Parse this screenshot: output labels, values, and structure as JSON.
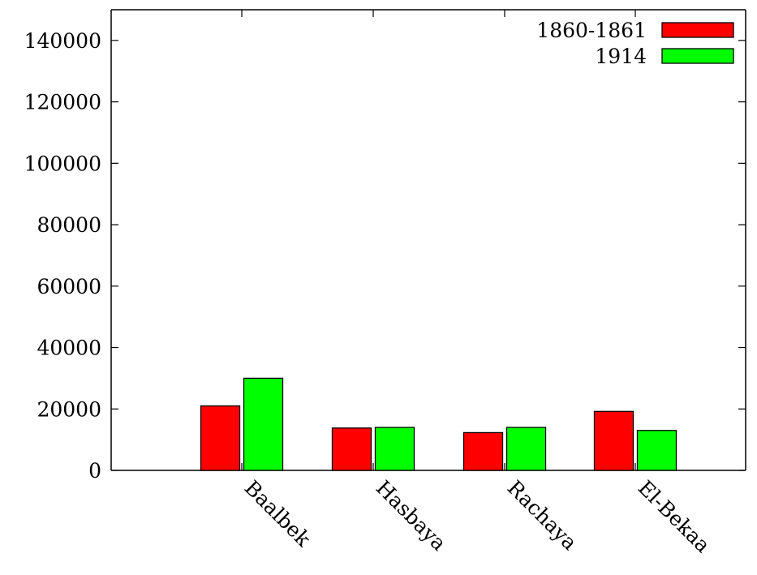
{
  "chart_data": {
    "type": "bar",
    "title": "",
    "xlabel": "",
    "ylabel": "",
    "categories": [
      "Baalbek",
      "Hasbaya",
      "Rachaya",
      "El-Bekaa"
    ],
    "series": [
      {
        "name": "1860-1861",
        "color": "#ff0000",
        "values": [
          21000,
          13800,
          12300,
          19200
        ]
      },
      {
        "name": "1914",
        "color": "#00ff00",
        "values": [
          30000,
          14000,
          14000,
          13000
        ]
      }
    ],
    "ylim": [
      0,
      150000
    ],
    "yticks": [
      0,
      20000,
      40000,
      60000,
      80000,
      100000,
      120000,
      140000
    ],
    "ytick_labels": [
      "0",
      "20000",
      "40000",
      "60000",
      "80000",
      "100000",
      "120000",
      "140000"
    ],
    "grid": false,
    "legend_position": "top-right",
    "category_label_rotation": "-45deg (slanted down-right)"
  }
}
